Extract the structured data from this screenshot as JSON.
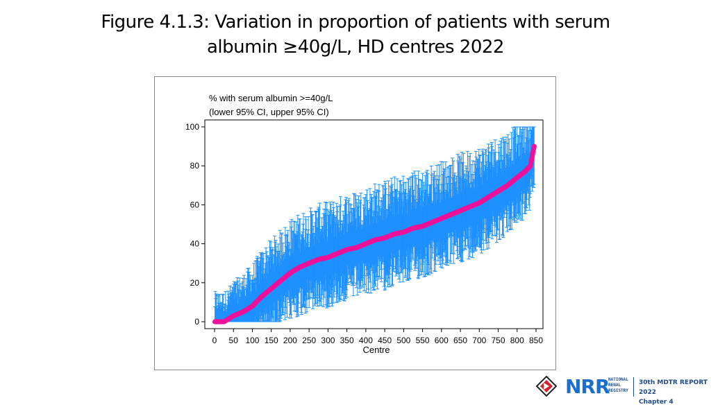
{
  "page": {
    "title_line1": "Figure 4.1.3: Variation in proportion of patients with serum",
    "title_line2": "albumin ≥40g/L, HD centres 2022"
  },
  "footer": {
    "logo_icon": "nrr-diamond-logo-icon",
    "brand": "NRR",
    "brand_sub_1": "NATIONAL",
    "brand_sub_2": "RENAL",
    "brand_sub_3": "REGISTRY",
    "report_line1": "30th MDTR REPORT 2022",
    "report_line2": "Chapter 4",
    "colors": {
      "brand_blue": "#1d6fcf",
      "dark_blue": "#1d4b8c",
      "red": "#d4232b"
    }
  },
  "chart_data": {
    "type": "scatter",
    "legend_line1": "% with serum albumin >=40g/L",
    "legend_line2": "(lower 95% CI, upper 95% CI)",
    "xlabel": "Centre",
    "ylabel": "",
    "xlim": [
      0,
      850
    ],
    "ylim": [
      0,
      100
    ],
    "x_ticks": [
      "0",
      "50",
      "100",
      "150",
      "200",
      "250",
      "300",
      "350",
      "400",
      "450",
      "500",
      "550",
      "600",
      "650",
      "700",
      "750",
      "800",
      "850"
    ],
    "y_ticks": [
      "0",
      "20",
      "40",
      "60",
      "80",
      "100"
    ],
    "n_centres": 845,
    "grid": false,
    "colors": {
      "point": "#ee1199",
      "ci": "#1e90ff"
    },
    "series": [
      {
        "role": "point estimate (sorted)",
        "x": [
          1,
          25,
          50,
          75,
          100,
          125,
          150,
          175,
          200,
          225,
          250,
          275,
          300,
          325,
          350,
          375,
          400,
          425,
          450,
          475,
          500,
          525,
          550,
          575,
          600,
          625,
          650,
          675,
          700,
          725,
          750,
          775,
          800,
          820,
          835,
          840,
          845
        ],
        "values": [
          0,
          0,
          3,
          5,
          8,
          13,
          17,
          21,
          25,
          28,
          30,
          32,
          33,
          35,
          37,
          38,
          40,
          42,
          43,
          45,
          46,
          48,
          49,
          51,
          53,
          55,
          57,
          59,
          61,
          64,
          67,
          70,
          74,
          77,
          80,
          85,
          90
        ]
      }
    ]
  }
}
